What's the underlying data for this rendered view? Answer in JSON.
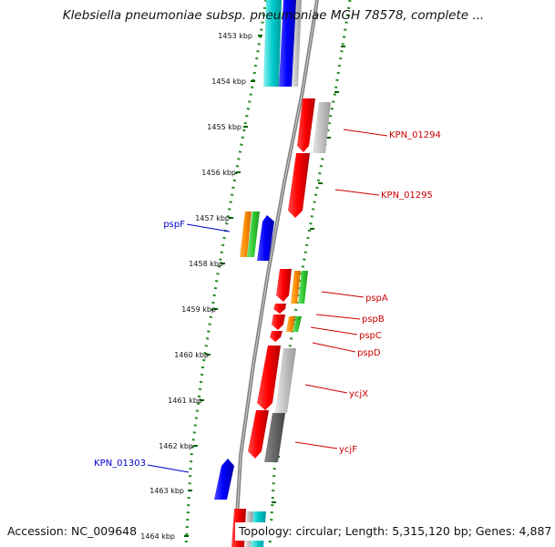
{
  "title": "Klebsiella pneumoniae subsp. pneumoniae MGH 78578, complete ...",
  "footer": {
    "accession": "Accession: NC_009648",
    "topology": "Topology: circular; Length: 5,315,120 bp; Genes: 4,887"
  },
  "ticks": [
    "1453 kbp",
    "1454 kbp",
    "1455 kbp",
    "1456 kbp",
    "1457 kbp",
    "1458 kbp",
    "1459 kbp",
    "1460 kbp",
    "1461 kbp",
    "1462 kbp",
    "1463 kbp",
    "1464 kbp"
  ],
  "labels": {
    "KPN_01294": "KPN_01294",
    "KPN_01295": "KPN_01295",
    "pspF": "pspF",
    "pspA": "pspA",
    "pspB": "pspB",
    "pspC": "pspC",
    "pspD": "pspD",
    "ycjX": "ycjX",
    "ycjF": "ycjF",
    "KPN_01303": "KPN_01303"
  },
  "colors": {
    "forward_gene": "#ff0000",
    "reverse_gene": "#0000ff",
    "forward_label": "#cc0000",
    "reverse_label": "#0000cc",
    "backbone": "#808080",
    "dotted_track": "#228b22",
    "cyan": "#00cccc",
    "orange": "#ff8c00",
    "green": "#33cc33",
    "light_gray": "#c0c0c0",
    "dark_gray": "#666666"
  }
}
